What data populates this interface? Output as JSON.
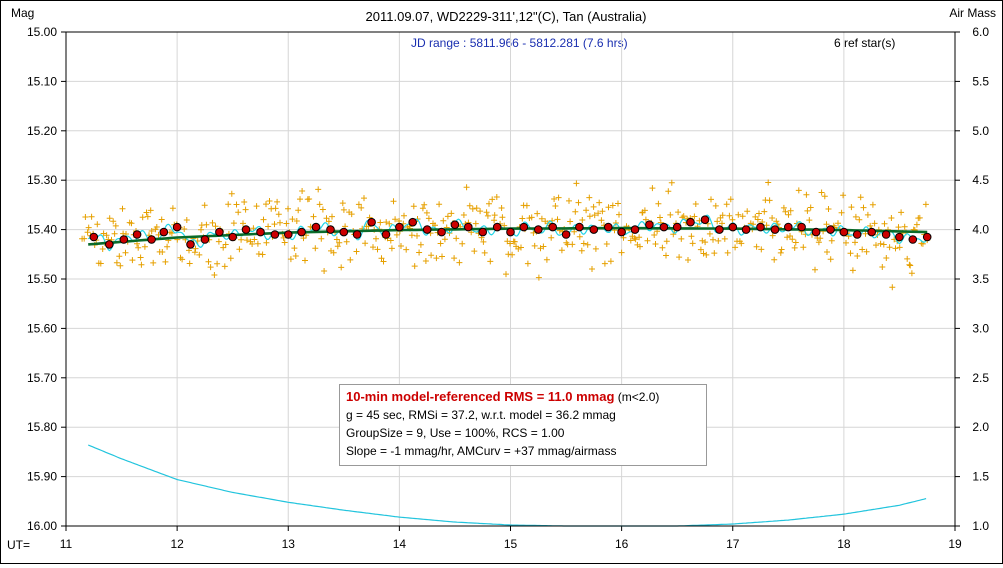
{
  "chart_data": {
    "type": "scatter",
    "title": "2011.09.07, WD2229-311',12\"(C), Tan (Australia)",
    "subtitle": "JD range : 5811.966 - 5812.281 (7.6 hrs)",
    "ref_stars": "6 ref star(s)",
    "ylabel_left": "Mag",
    "ylabel_right": "Air Mass",
    "xlabel": "UT=",
    "xlim": [
      11,
      19
    ],
    "ylim_left": [
      16.0,
      15.0
    ],
    "ylim_right": [
      1.0,
      6.0
    ],
    "x_ticks": [
      "11",
      "12",
      "13",
      "14",
      "15",
      "16",
      "17",
      "18",
      "19"
    ],
    "y_ticks_left": [
      "15.00",
      "15.10",
      "15.20",
      "15.30",
      "15.40",
      "15.50",
      "15.60",
      "15.70",
      "15.80",
      "15.90",
      "16.00"
    ],
    "y_ticks_right": [
      "6.0",
      "5.5",
      "5.0",
      "4.5",
      "4.0",
      "3.5",
      "3.0",
      "2.5",
      "2.0",
      "1.5",
      "1.0"
    ],
    "grid": true,
    "series": [
      {
        "kind": "group_means",
        "color": "#cc0000",
        "x": [
          11.25,
          11.39,
          11.52,
          11.64,
          11.77,
          11.88,
          12.0,
          12.12,
          12.25,
          12.38,
          12.5,
          12.62,
          12.75,
          12.88,
          13.0,
          13.12,
          13.25,
          13.38,
          13.5,
          13.62,
          13.75,
          13.88,
          14.0,
          14.12,
          14.25,
          14.38,
          14.5,
          14.62,
          14.75,
          14.88,
          15.0,
          15.12,
          15.25,
          15.38,
          15.5,
          15.62,
          15.75,
          15.88,
          16.0,
          16.12,
          16.25,
          16.38,
          16.5,
          16.62,
          16.75,
          16.88,
          17.0,
          17.12,
          17.25,
          17.38,
          17.5,
          17.62,
          17.75,
          17.88,
          18.0,
          18.12,
          18.25,
          18.38,
          18.5,
          18.62,
          18.75
        ],
        "y": [
          15.415,
          15.43,
          15.42,
          15.41,
          15.42,
          15.405,
          15.395,
          15.43,
          15.42,
          15.405,
          15.415,
          15.4,
          15.405,
          15.41,
          15.41,
          15.405,
          15.395,
          15.4,
          15.405,
          15.41,
          15.385,
          15.41,
          15.395,
          15.385,
          15.4,
          15.405,
          15.39,
          15.395,
          15.405,
          15.395,
          15.405,
          15.395,
          15.4,
          15.395,
          15.41,
          15.395,
          15.4,
          15.395,
          15.405,
          15.4,
          15.39,
          15.395,
          15.395,
          15.385,
          15.38,
          15.4,
          15.395,
          15.4,
          15.395,
          15.4,
          15.395,
          15.395,
          15.405,
          15.4,
          15.405,
          15.41,
          15.405,
          15.41,
          15.415,
          15.42,
          15.415
        ]
      },
      {
        "kind": "model_fit",
        "color": "#0a6b2a",
        "x": [
          11.2,
          12.0,
          13.0,
          14.0,
          15.0,
          16.0,
          17.0,
          18.0,
          18.75
        ],
        "y": [
          15.43,
          15.416,
          15.406,
          15.401,
          15.398,
          15.397,
          15.398,
          15.401,
          15.405
        ]
      },
      {
        "kind": "air_mass",
        "axis": "right",
        "color": "#22c4dd",
        "x": [
          11.2,
          11.5,
          12.0,
          12.5,
          13.0,
          13.5,
          14.0,
          14.5,
          15.0,
          15.5,
          16.0,
          16.5,
          17.0,
          17.5,
          18.0,
          18.5,
          18.75
        ],
        "y": [
          1.82,
          1.68,
          1.47,
          1.34,
          1.24,
          1.16,
          1.09,
          1.04,
          1.01,
          1.0,
          1.0,
          1.0,
          1.02,
          1.06,
          1.12,
          1.21,
          1.28
        ]
      }
    ],
    "scatter_color": "#e6a000",
    "smooth_color": "#22d4e6"
  },
  "info": {
    "line1": "10-min model-referenced RMS = 11.0 mmag",
    "line1_suffix": "(m<2.0)",
    "line2": "g = 45 sec, RMSi = 37.2, w.r.t. model = 36.2 mmag",
    "line3": "GroupSize = 9, Use = 100%, RCS = 1.00",
    "line4": "Slope = -1 mmag/hr, AMCurv = +37 mmag/airmass"
  }
}
